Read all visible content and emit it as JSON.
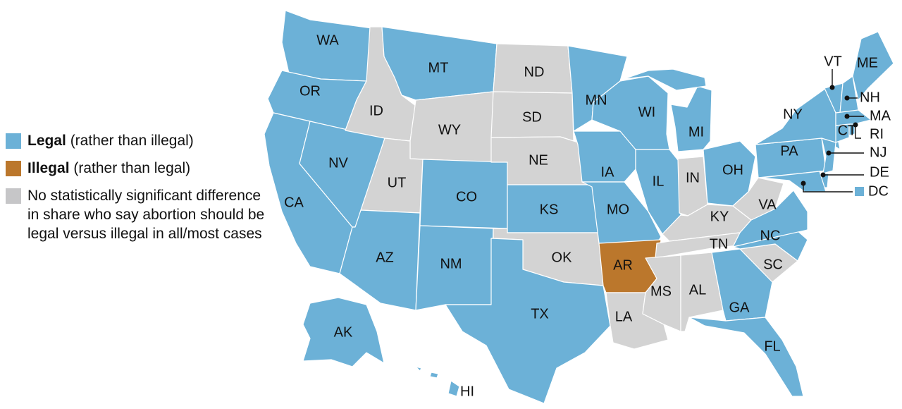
{
  "colors": {
    "legal": "#6cb1d7",
    "illegal": "#bb772c",
    "none": "#d3d3d3"
  },
  "legend": [
    {
      "status": "legal",
      "bold": "Legal",
      "rest": " (rather than illegal)"
    },
    {
      "status": "illegal",
      "bold": "Illegal",
      "rest": " (rather than legal)"
    },
    {
      "status": "none",
      "bold": "",
      "rest": "No statistically significant difference in share who say abortion should be legal versus illegal in all/most cases"
    }
  ],
  "states": {
    "WA": "legal",
    "OR": "legal",
    "CA": "legal",
    "NV": "legal",
    "ID": "none",
    "MT": "legal",
    "WY": "none",
    "UT": "none",
    "CO": "legal",
    "AZ": "legal",
    "NM": "legal",
    "ND": "none",
    "SD": "none",
    "NE": "none",
    "KS": "legal",
    "OK": "none",
    "TX": "legal",
    "MN": "legal",
    "IA": "legal",
    "MO": "legal",
    "AR": "illegal",
    "LA": "none",
    "WI": "legal",
    "IL": "legal",
    "MI": "legal",
    "IN": "none",
    "OH": "legal",
    "KY": "none",
    "TN": "none",
    "MS": "none",
    "AL": "none",
    "GA": "legal",
    "FL": "legal",
    "SC": "none",
    "NC": "legal",
    "VA": "legal",
    "WV": "none",
    "PA": "legal",
    "NY": "legal",
    "NJ": "legal",
    "DE": "legal",
    "MD": "legal",
    "VT": "legal",
    "NH": "legal",
    "ME": "legal",
    "MA": "legal",
    "CT": "legal",
    "RI": "legal",
    "AK": "legal",
    "HI": "legal",
    "DC": "legal"
  }
}
